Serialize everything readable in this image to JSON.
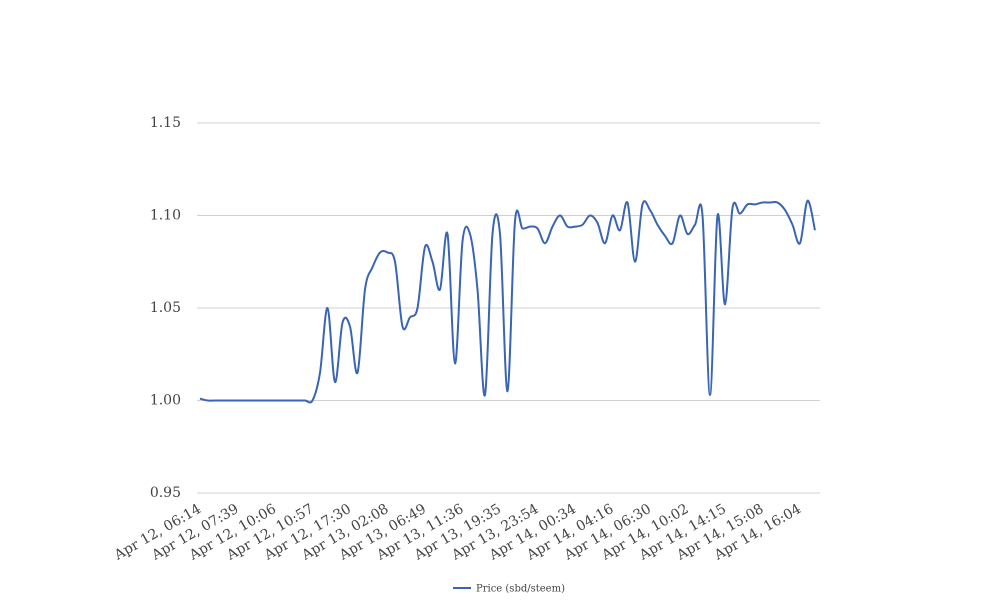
{
  "chart_data": {
    "type": "line",
    "categories": [
      "Apr 12, 06:14",
      null,
      null,
      null,
      null,
      "Apr 12, 07:39",
      null,
      null,
      null,
      null,
      "Apr 12, 10:06",
      null,
      null,
      null,
      null,
      "Apr 12, 10:57",
      null,
      null,
      null,
      null,
      "Apr 12, 17:30",
      null,
      null,
      null,
      null,
      "Apr 13, 02:08",
      null,
      null,
      null,
      null,
      "Apr 13, 06:49",
      null,
      null,
      null,
      null,
      "Apr 13, 11:36",
      null,
      null,
      null,
      null,
      "Apr 13, 19:35",
      null,
      null,
      null,
      null,
      "Apr 13, 23:54",
      null,
      null,
      null,
      null,
      "Apr 14, 00:34",
      null,
      null,
      null,
      null,
      "Apr 14, 04:16",
      null,
      null,
      null,
      null,
      "Apr 14, 06:30",
      null,
      null,
      null,
      null,
      "Apr 14, 10:02",
      null,
      null,
      null,
      null,
      "Apr 14, 14:15",
      null,
      null,
      null,
      null,
      "Apr 14, 15:08",
      null,
      null,
      null,
      null,
      "Apr 14, 16:04",
      null,
      null
    ],
    "series": [
      {
        "name": "Price (sbd/steem)",
        "color": "#3a64b4",
        "values": [
          1.001,
          1.0,
          1.0,
          1.0,
          1.0,
          1.0,
          1.0,
          1.0,
          1.0,
          1.0,
          1.0,
          1.0,
          1.0,
          1.0,
          1.0,
          1.0,
          1.015,
          1.05,
          1.01,
          1.042,
          1.04,
          1.015,
          1.06,
          1.072,
          1.08,
          1.08,
          1.075,
          1.04,
          1.045,
          1.05,
          1.083,
          1.075,
          1.06,
          1.09,
          1.02,
          1.086,
          1.09,
          1.06,
          1.003,
          1.09,
          1.09,
          1.005,
          1.097,
          1.093,
          1.094,
          1.093,
          1.085,
          1.094,
          1.1,
          1.094,
          1.094,
          1.095,
          1.1,
          1.096,
          1.085,
          1.1,
          1.092,
          1.107,
          1.075,
          1.106,
          1.103,
          1.095,
          1.089,
          1.085,
          1.1,
          1.09,
          1.095,
          1.1,
          1.003,
          1.1,
          1.052,
          1.104,
          1.101,
          1.106,
          1.106,
          1.107,
          1.107,
          1.107,
          1.103,
          1.095,
          1.085,
          1.108,
          1.092
        ]
      }
    ],
    "ylim": [
      0.95,
      1.15
    ],
    "yticks": [
      {
        "value": 0.95,
        "label": "0.95"
      },
      {
        "value": 1.0,
        "label": "1.00"
      },
      {
        "value": 1.05,
        "label": "1.05"
      },
      {
        "value": 1.1,
        "label": "1.10"
      },
      {
        "value": 1.15,
        "label": "1.15"
      }
    ],
    "grid": true,
    "legend": "bottom"
  }
}
